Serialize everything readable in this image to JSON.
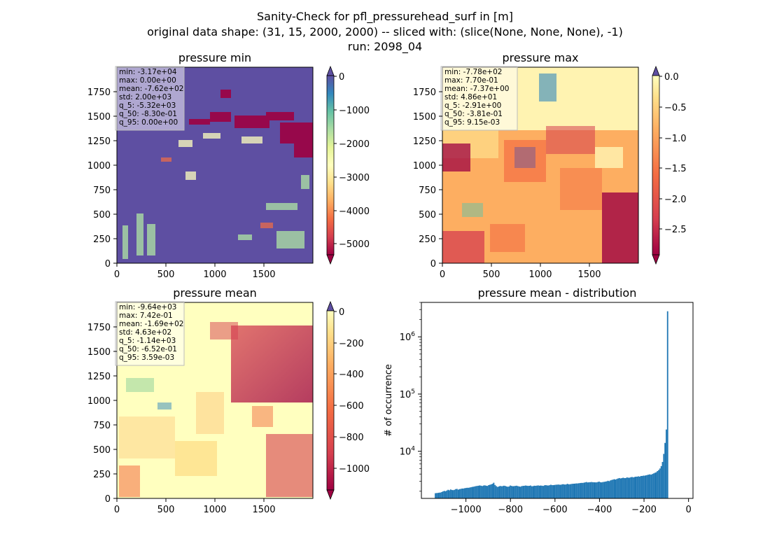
{
  "suptitle": {
    "line1": "Sanity-Check for pfl_pressurehead_surf in [m]",
    "line2": "original data shape: (31, 15, 2000, 2000) -- sliced with: (slice(None, None, None), -1)",
    "line3": "run: 2098_04"
  },
  "chart_data": [
    {
      "type": "heatmap",
      "title": "pressure min",
      "xlim": [
        0,
        2000
      ],
      "ylim": [
        0,
        2000
      ],
      "xticks": [
        "0",
        "500",
        "1000",
        "1500"
      ],
      "yticks": [
        "0",
        "250",
        "500",
        "750",
        "1000",
        "1250",
        "1500",
        "1750"
      ],
      "colormap": "Spectral",
      "colorbar": {
        "range": [
          -5500,
          0
        ],
        "ticks": [
          "0",
          "−1000",
          "−2000",
          "−3000",
          "−4000",
          "−5000"
        ],
        "extend": "both"
      },
      "stats": [
        "min: -3.17e+04",
        "max: 0.00e+00",
        "mean: -7.62e+02",
        "std: 2.00e+03",
        "q_5: -5.32e+03",
        "q_50: -8.30e-01",
        "q_95: 0.00e+00"
      ]
    },
    {
      "type": "heatmap",
      "title": "pressure max",
      "xlim": [
        0,
        2000
      ],
      "ylim": [
        0,
        2000
      ],
      "xticks": [
        "0",
        "500",
        "1000",
        "1500"
      ],
      "yticks": [
        "0",
        "250",
        "500",
        "750",
        "1000",
        "1250",
        "1500",
        "1750"
      ],
      "colormap": "Spectral",
      "colorbar": {
        "range": [
          -2.95,
          0.0
        ],
        "ticks": [
          "0.0",
          "−0.5",
          "−1.0",
          "−1.5",
          "−2.0",
          "−2.5"
        ],
        "extend": "both"
      },
      "stats": [
        "min: -7.78e+02",
        "max: 7.70e-01",
        "mean: -7.37e+00",
        "std: 4.86e+01",
        "q_5: -2.91e+00",
        "q_50: -3.81e-01",
        "q_95: 9.15e-03"
      ]
    },
    {
      "type": "heatmap",
      "title": "pressure mean",
      "xlim": [
        0,
        2000
      ],
      "ylim": [
        0,
        2000
      ],
      "xticks": [
        "0",
        "500",
        "1000",
        "1500"
      ],
      "yticks": [
        "0",
        "250",
        "500",
        "750",
        "1000",
        "1250",
        "1500",
        "1750"
      ],
      "colormap": "Spectral",
      "colorbar": {
        "range": [
          -1140,
          0
        ],
        "ticks": [
          "0",
          "−200",
          "−400",
          "−600",
          "−800",
          "−1000"
        ],
        "extend": "both"
      },
      "stats": [
        "min: -9.64e+03",
        "max: 7.42e-01",
        "mean: -1.69e+02",
        "std: 4.63e+02",
        "q_5: -1.14e+03",
        "q_50: -6.52e-01",
        "q_95: 3.59e-03"
      ]
    },
    {
      "type": "bar",
      "title": "pressure mean - distribution",
      "ylabel": "# of occurrence",
      "xlabel": "",
      "yscale": "log",
      "color": "#1f77b4",
      "xlim": [
        -1200,
        20
      ],
      "ylim": [
        1500,
        4000000
      ],
      "xticks": [
        {
          "v": -1000,
          "label": "−1000"
        },
        {
          "v": -800,
          "label": "−800"
        },
        {
          "v": -600,
          "label": "−600"
        },
        {
          "v": -400,
          "label": "−400"
        },
        {
          "v": -200,
          "label": "−200"
        },
        {
          "v": 0,
          "label": "0"
        }
      ],
      "yticks": [
        {
          "v": 10000,
          "base": "10",
          "exp": "4"
        },
        {
          "v": 100000,
          "base": "10",
          "exp": "5"
        },
        {
          "v": 1000000,
          "base": "10",
          "exp": "6"
        }
      ],
      "bins": {
        "start": -1140,
        "width": 5.7,
        "counts": [
          1850,
          1860,
          1870,
          1890,
          1900,
          1940,
          1990,
          2030,
          2000,
          2060,
          2120,
          2080,
          2150,
          2110,
          2090,
          2120,
          2180,
          2200,
          2130,
          2180,
          2200,
          2230,
          2230,
          2260,
          2280,
          2300,
          2300,
          2320,
          2350,
          2380,
          2400,
          2430,
          2460,
          2480,
          2500,
          2530,
          2500,
          2470,
          2520,
          2540,
          2500,
          2480,
          2560,
          2600,
          2640,
          2700,
          2820,
          2580,
          2460,
          2380,
          2420,
          2480,
          2450,
          2460,
          2500,
          2480,
          2430,
          2400,
          2420,
          2520,
          2480,
          2450,
          2460,
          2480,
          2500,
          2460,
          2430,
          2400,
          2460,
          2480,
          2490,
          2520,
          2500,
          2480,
          2490,
          2520,
          2450,
          2460,
          2500,
          2490,
          2510,
          2530,
          2500,
          2520,
          2500,
          2480,
          2540,
          2560,
          2530,
          2520,
          2550,
          2600,
          2560,
          2560,
          2580,
          2600,
          2610,
          2620,
          2600,
          2600,
          2650,
          2650,
          2620,
          2630,
          2700,
          2650,
          2650,
          2680,
          2700,
          2710,
          2720,
          2740,
          2740,
          2760,
          2780,
          2800,
          2800,
          2820,
          2860,
          2900,
          2850,
          2870,
          2880,
          2900,
          2880,
          2870,
          2860,
          2860,
          2900,
          2950,
          2880,
          2860,
          2900,
          2920,
          2950,
          2980,
          3050,
          3000,
          3100,
          3150,
          3200,
          3250,
          3200,
          3280,
          3350,
          3400,
          3350,
          3400,
          3450,
          3400,
          3400,
          3500,
          3450,
          3450,
          3520,
          3550,
          3500,
          3550,
          3600,
          3600,
          3650,
          3600,
          3700,
          3700,
          3750,
          3750,
          3800,
          3850,
          3900,
          3950,
          3900,
          4000,
          4100,
          4200,
          4300,
          4500,
          4700,
          5000,
          5500,
          6500,
          9000,
          14000,
          24000,
          2800000
        ]
      }
    }
  ]
}
